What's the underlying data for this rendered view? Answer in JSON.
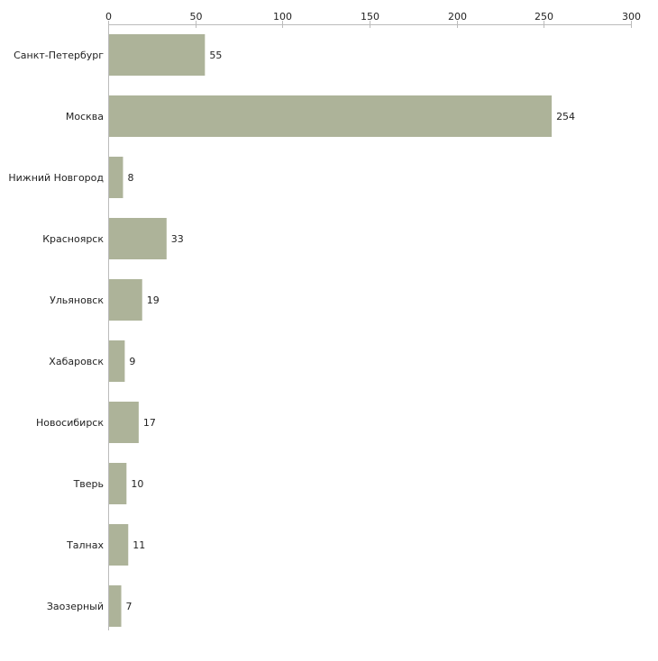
{
  "chart_data": {
    "type": "bar",
    "orientation": "horizontal",
    "title": "",
    "xlabel": "",
    "ylabel": "",
    "xlim": [
      0,
      300
    ],
    "xticks": [
      0,
      50,
      100,
      150,
      200,
      250,
      300
    ],
    "axis_position": "top",
    "grid": false,
    "categories": [
      "Санкт-Петербург",
      "Москва",
      "Нижний Новгород",
      "Красноярск",
      "Ульяновск",
      "Хабаровск",
      "Новосибирск",
      "Тверь",
      "Талнах",
      "Заозерный"
    ],
    "values": [
      55,
      254,
      8,
      33,
      19,
      9,
      17,
      10,
      11,
      7
    ],
    "data_labels": [
      "55",
      "254",
      "8",
      "33",
      "19",
      "9",
      "17",
      "10",
      "11",
      "7"
    ],
    "colors": {
      "bar": "#adb399",
      "axis": "#bbbbbb",
      "text": "#222222"
    }
  }
}
